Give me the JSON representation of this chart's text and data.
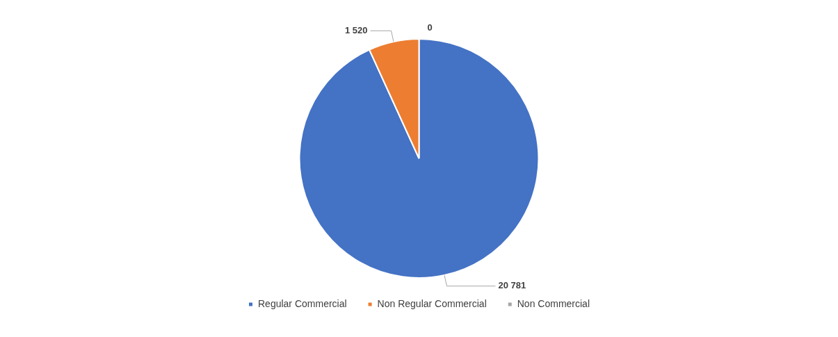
{
  "chart_data": {
    "type": "pie",
    "categories": [
      "Regular Commercial",
      "Non Regular Commercial",
      "Non Commercial"
    ],
    "values": [
      20781,
      1520,
      0
    ],
    "colors": [
      "#4472c4",
      "#ed7d31",
      "#a5a5a5"
    ],
    "value_labels": [
      "20 781",
      "1 520",
      "0"
    ],
    "legend": "bottom"
  }
}
